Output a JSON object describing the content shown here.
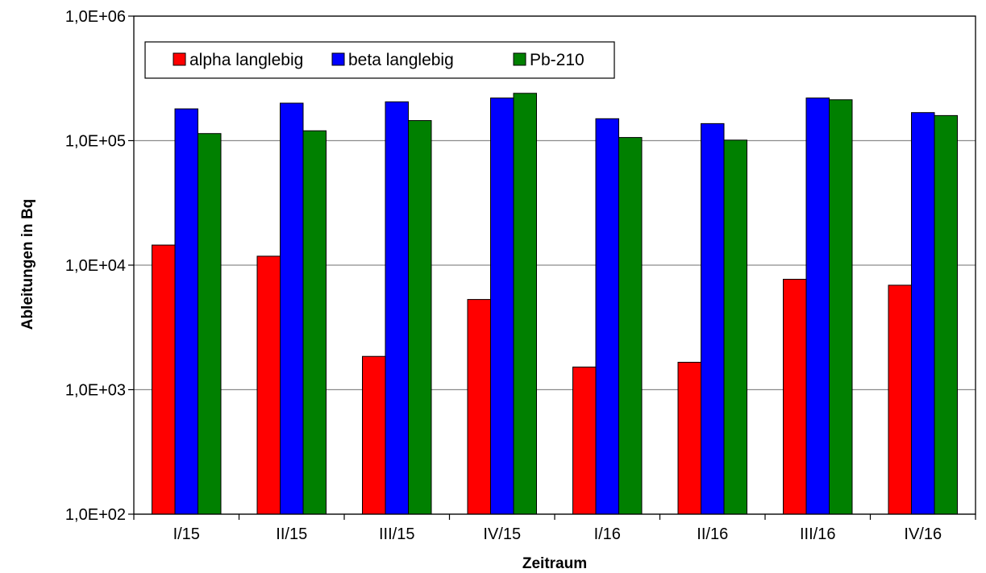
{
  "chart_data": {
    "type": "bar",
    "xlabel": "Zeitraum",
    "ylabel": "Ableitungen in Bq",
    "yscale": "log",
    "ylim": [
      100,
      1000000
    ],
    "yticks": [
      100,
      1000,
      10000,
      100000,
      1000000
    ],
    "ytick_labels": [
      "1,0E+02",
      "1,0E+03",
      "1,0E+04",
      "1,0E+05",
      "1,0E+06"
    ],
    "grid": "horizontal",
    "legend_position": "top-left",
    "categories": [
      "I/15",
      "II/15",
      "III/15",
      "IV/15",
      "I/16",
      "II/16",
      "III/16",
      "IV/16"
    ],
    "series": [
      {
        "name": "alpha langlebig",
        "color": "#ff0000",
        "values": [
          14500,
          11800,
          1850,
          5300,
          1520,
          1660,
          7700,
          6900
        ]
      },
      {
        "name": "beta langlebig",
        "color": "#0000ff",
        "values": [
          180000,
          200000,
          205000,
          220000,
          150000,
          137000,
          220000,
          168000
        ]
      },
      {
        "name": "Pb-210",
        "color": "#008000",
        "values": [
          114000,
          120000,
          145000,
          240000,
          106000,
          101000,
          213000,
          159000
        ]
      }
    ]
  }
}
